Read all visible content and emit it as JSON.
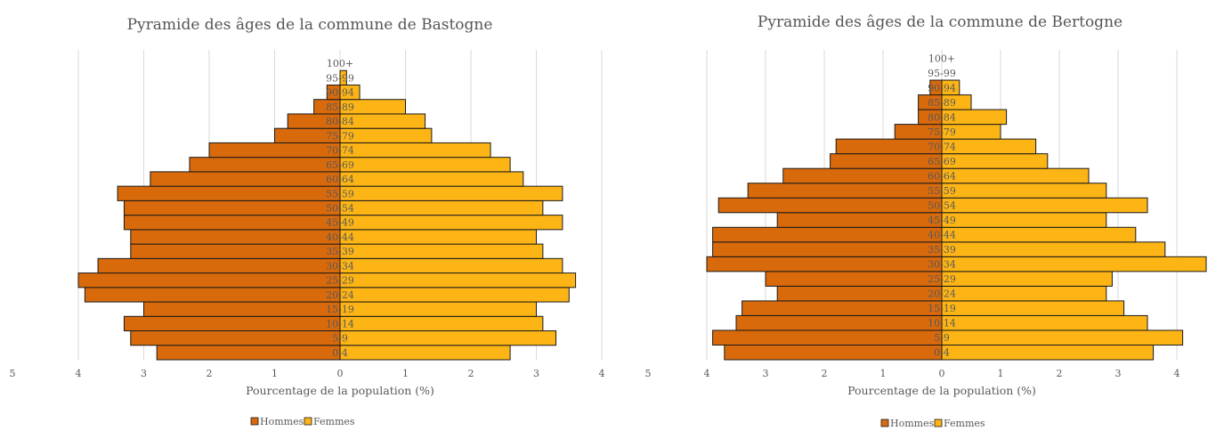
{
  "chart_data": [
    {
      "type": "bar",
      "title": "Pyramide des âges de la commune de Bastogne",
      "xlabel": "Pourcentage de la population (%)",
      "ylabel": "",
      "categories": [
        "0-4",
        "5-9",
        "10-14",
        "15-19",
        "20-24",
        "25-29",
        "30-34",
        "35-39",
        "40-44",
        "45-49",
        "50-54",
        "55-59",
        "60-64",
        "65-69",
        "70-74",
        "75-79",
        "80-84",
        "85-89",
        "90-94",
        "95-99",
        "100+"
      ],
      "series": [
        {
          "name": "Hommes",
          "color": "#d86a0c",
          "values": [
            2.8,
            3.2,
            3.3,
            3.0,
            3.9,
            4.0,
            3.7,
            3.2,
            3.2,
            3.3,
            3.3,
            3.4,
            2.9,
            2.3,
            2.0,
            1.0,
            0.8,
            0.4,
            0.2,
            0,
            0
          ]
        },
        {
          "name": "Femmes",
          "color": "#fdb515",
          "values": [
            2.6,
            3.3,
            3.1,
            3.0,
            3.5,
            3.6,
            3.4,
            3.1,
            3.0,
            3.4,
            3.1,
            3.4,
            2.8,
            2.6,
            2.3,
            1.4,
            1.3,
            1.0,
            0.3,
            0.1,
            0
          ]
        }
      ],
      "xlim": [
        -5,
        4
      ],
      "ticks": [
        "5",
        "4",
        "3",
        "2",
        "1",
        "0",
        "1",
        "2",
        "3",
        "4"
      ],
      "legend": [
        "Hommes",
        "Femmes"
      ],
      "legend_position": "bottom",
      "grid": true
    },
    {
      "type": "bar",
      "title": "Pyramide des âges de la commune de Bertogne",
      "xlabel": "Pourcentage de la population (%)",
      "ylabel": "",
      "categories": [
        "0-4",
        "5-9",
        "10-14",
        "15-19",
        "20-24",
        "25-29",
        "30-34",
        "35-39",
        "40-44",
        "45-49",
        "50-54",
        "55-59",
        "60-64",
        "65-69",
        "70-74",
        "75-79",
        "80-84",
        "85-89",
        "90-94",
        "95-99",
        "100+"
      ],
      "series": [
        {
          "name": "Hommes",
          "color": "#d86a0c",
          "values": [
            3.7,
            3.9,
            3.5,
            3.4,
            2.8,
            3.0,
            4.0,
            3.9,
            3.9,
            2.8,
            3.8,
            3.3,
            2.7,
            1.9,
            1.8,
            0.8,
            0.4,
            0.4,
            0.2,
            0,
            0
          ]
        },
        {
          "name": "Femmes",
          "color": "#fdb515",
          "values": [
            3.6,
            4.1,
            3.5,
            3.1,
            2.8,
            2.9,
            4.5,
            3.8,
            3.3,
            2.8,
            3.5,
            2.8,
            2.5,
            1.8,
            1.6,
            1.0,
            1.1,
            0.5,
            0.3,
            0,
            0
          ]
        }
      ],
      "xlim": [
        -5,
        4.8
      ],
      "ticks": [
        "5",
        "4",
        "3",
        "2",
        "1",
        "0",
        "1",
        "2",
        "3",
        "4",
        "5"
      ],
      "legend": [
        "Hommes",
        "Femmes"
      ],
      "legend_position": "bottom",
      "grid": true
    }
  ]
}
